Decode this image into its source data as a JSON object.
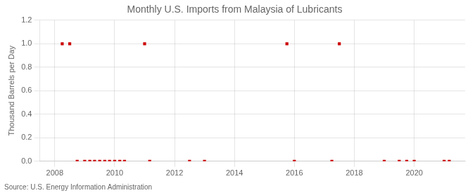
{
  "chart_data": {
    "type": "scatter",
    "title": "Monthly U.S. Imports from Malaysia of Lubricants",
    "ylabel": "Thousand Barrels per Day",
    "annotations": [
      "Source: U.S. Energy Information Administration"
    ],
    "x": [
      2008.25,
      2008.5,
      2008.75,
      2009.0,
      2009.17,
      2009.33,
      2009.5,
      2009.67,
      2009.83,
      2010.0,
      2010.17,
      2010.33,
      2011.0,
      2011.17,
      2012.5,
      2013.0,
      2015.75,
      2016.0,
      2017.25,
      2017.5,
      2019.0,
      2019.5,
      2019.75,
      2020.0,
      2021.0,
      2021.17
    ],
    "values": [
      1.0,
      1.0,
      0.0,
      0.0,
      0.0,
      0.0,
      0.0,
      0.0,
      0.0,
      0.0,
      0.0,
      0.0,
      1.0,
      0.0,
      0.0,
      0.0,
      1.0,
      0.0,
      0.0,
      1.0,
      0.0,
      0.0,
      0.0,
      0.0,
      0.0,
      0.0
    ],
    "color": "#cc0000",
    "marker": "square",
    "xlim": [
      2007.5,
      2021.7
    ],
    "xticks": [
      2008,
      2010,
      2012,
      2014,
      2016,
      2018,
      2020
    ],
    "ylim": [
      0,
      1.2
    ],
    "yticks": [
      {
        "value": 0,
        "label": "0.0"
      },
      0.2,
      0.4,
      0.6,
      0.8,
      {
        "value": 1,
        "label": "1.0"
      },
      1.2
    ],
    "grid": true
  }
}
